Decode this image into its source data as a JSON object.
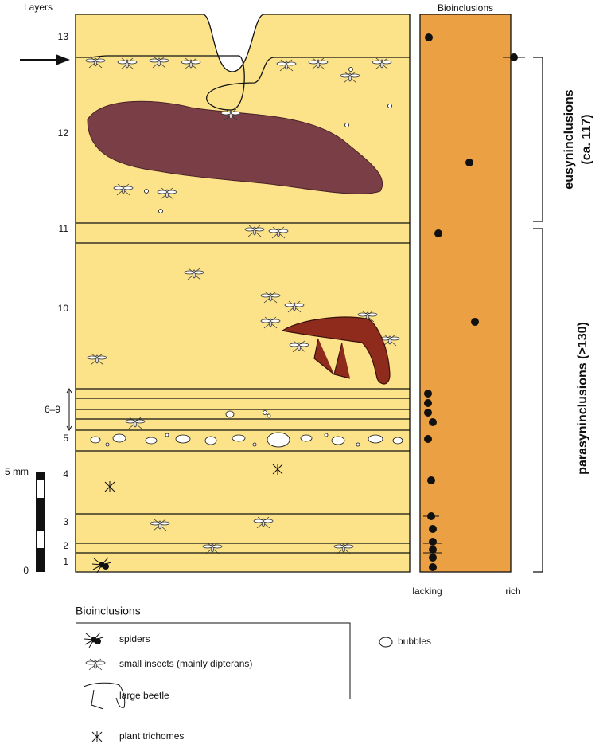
{
  "header": {
    "layers_title": "Layers",
    "column_title": "Bioinclusions"
  },
  "layers": [
    "13",
    "12",
    "11",
    "10",
    "6–9",
    "5",
    "4",
    "3",
    "2",
    "1"
  ],
  "axis": {
    "low": "lacking",
    "high": "rich"
  },
  "brackets": {
    "eusyn": "eusyninclusions",
    "eusyn_count": "(ca. 117)",
    "parasyn": "parasyninclusions (>130)"
  },
  "scale": {
    "top": "5 mm",
    "bottom": "0"
  },
  "legend": {
    "title": "Bioinclusions",
    "items": [
      "spiders",
      "small insects (mainly dipterans)",
      "large beetle",
      "plant trichomes"
    ],
    "bubbles": "bubbles"
  }
}
